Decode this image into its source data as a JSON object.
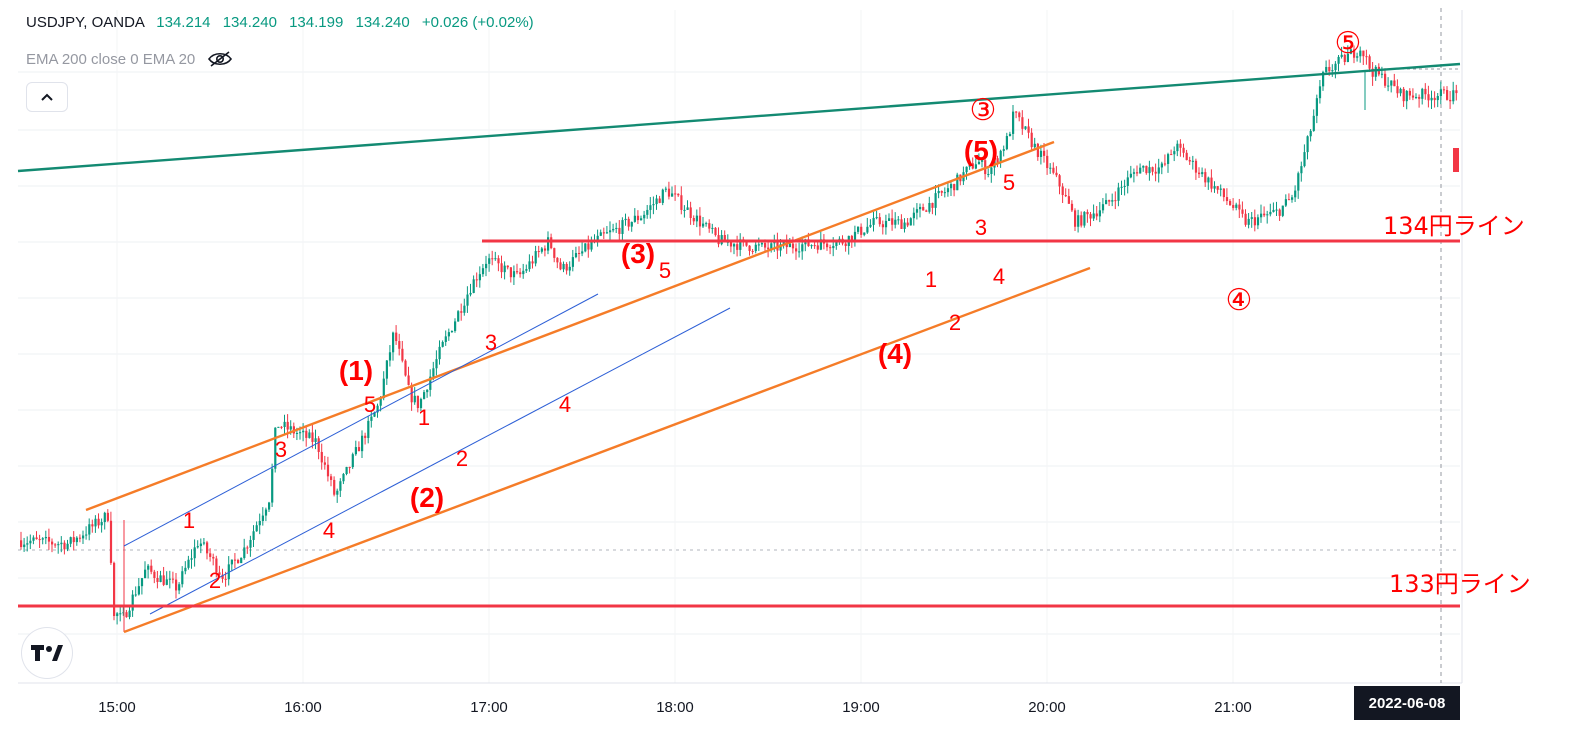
{
  "header": {
    "symbol": "USDJPY, OANDA",
    "open": "134.214",
    "high": "134.240",
    "low": "134.199",
    "close": "134.240",
    "change": "+0.026 (+0.02%)"
  },
  "indicator": {
    "label": "EMA 200 close 0 EMA 20",
    "visibility_icon": "eye-crossed-icon"
  },
  "collapse_icon": "chevron-up-icon",
  "logo": "TV",
  "date_badge": "2022-06-08",
  "colors": {
    "up": "#089981",
    "down": "#f23645",
    "annotation": "#ff0000",
    "channel": "#f57c28",
    "thin_channel": "#2d5fd6",
    "trend": "#138a72",
    "level_line": "#f23645"
  },
  "chart_data": {
    "type": "candlestick",
    "x_ticks": [
      "15:00",
      "16:00",
      "17:00",
      "18:00",
      "19:00",
      "20:00",
      "21:00"
    ],
    "horizontal_lines": [
      {
        "label": "134円ライン",
        "value": 134.0
      },
      {
        "label": "133円ライン",
        "value": 133.0
      }
    ],
    "price_path": [
      [
        "14:28",
        133.18
      ],
      [
        "14:45",
        133.17
      ],
      [
        "14:58",
        133.25
      ],
      [
        "15:00",
        132.92
      ],
      [
        "15:10",
        133.1
      ],
      [
        "15:20",
        133.05
      ],
      [
        "15:27",
        133.18
      ],
      [
        "15:35",
        133.08
      ],
      [
        "15:42",
        133.16
      ],
      [
        "15:50",
        133.3
      ],
      [
        "15:52",
        133.5
      ],
      [
        "16:05",
        133.45
      ],
      [
        "16:11",
        133.3
      ],
      [
        "16:25",
        133.55
      ],
      [
        "16:30",
        133.75
      ],
      [
        "16:35",
        133.58
      ],
      [
        "16:38",
        133.55
      ],
      [
        "16:45",
        133.7
      ],
      [
        "16:55",
        133.88
      ],
      [
        "17:00",
        133.95
      ],
      [
        "17:10",
        133.9
      ],
      [
        "17:20",
        134.0
      ],
      [
        "17:24",
        133.92
      ],
      [
        "17:35",
        134.0
      ],
      [
        "17:50",
        134.07
      ],
      [
        "17:58",
        134.14
      ],
      [
        "18:15",
        134.0
      ],
      [
        "18:30",
        133.98
      ],
      [
        "18:55",
        134.0
      ],
      [
        "19:05",
        134.05
      ],
      [
        "19:15",
        134.05
      ],
      [
        "19:30",
        134.15
      ],
      [
        "19:38",
        134.22
      ],
      [
        "19:42",
        134.19
      ],
      [
        "19:48",
        134.28
      ],
      [
        "19:50",
        134.35
      ],
      [
        "19:55",
        134.28
      ],
      [
        "20:05",
        134.15
      ],
      [
        "20:10",
        134.05
      ],
      [
        "20:20",
        134.1
      ],
      [
        "20:30",
        134.2
      ],
      [
        "20:38",
        134.2
      ],
      [
        "20:42",
        134.26
      ],
      [
        "21:00",
        134.1
      ],
      [
        "21:05",
        134.05
      ],
      [
        "21:15",
        134.08
      ],
      [
        "21:20",
        134.12
      ],
      [
        "21:25",
        134.28
      ],
      [
        "21:30",
        134.46
      ],
      [
        "21:40",
        134.52
      ],
      [
        "21:42",
        134.53
      ],
      [
        "21:45",
        134.47
      ],
      [
        "21:50",
        134.44
      ],
      [
        "21:55",
        134.4
      ],
      [
        "22:00",
        134.4
      ]
    ],
    "annotations": [
      {
        "text": "1",
        "style": "minor"
      },
      {
        "text": "2",
        "style": "minor"
      },
      {
        "text": "3",
        "style": "minor"
      },
      {
        "text": "4",
        "style": "minor"
      },
      {
        "text": "5",
        "style": "minor"
      },
      {
        "text": "(1)",
        "style": "bold"
      },
      {
        "text": "1",
        "style": "minor"
      },
      {
        "text": "2",
        "style": "minor"
      },
      {
        "text": "(2)",
        "style": "bold"
      },
      {
        "text": "3",
        "style": "minor"
      },
      {
        "text": "4",
        "style": "minor"
      },
      {
        "text": "5",
        "style": "minor"
      },
      {
        "text": "(3)",
        "style": "bold"
      },
      {
        "text": "(4)",
        "style": "bold"
      },
      {
        "text": "1",
        "style": "minor"
      },
      {
        "text": "2",
        "style": "minor"
      },
      {
        "text": "3",
        "style": "minor"
      },
      {
        "text": "4",
        "style": "minor"
      },
      {
        "text": "5",
        "style": "minor"
      },
      {
        "text": "(5)",
        "style": "bold"
      },
      {
        "text": "③",
        "style": "circle"
      },
      {
        "text": "④",
        "style": "circle"
      },
      {
        "text": "⑤",
        "style": "circle"
      }
    ]
  }
}
